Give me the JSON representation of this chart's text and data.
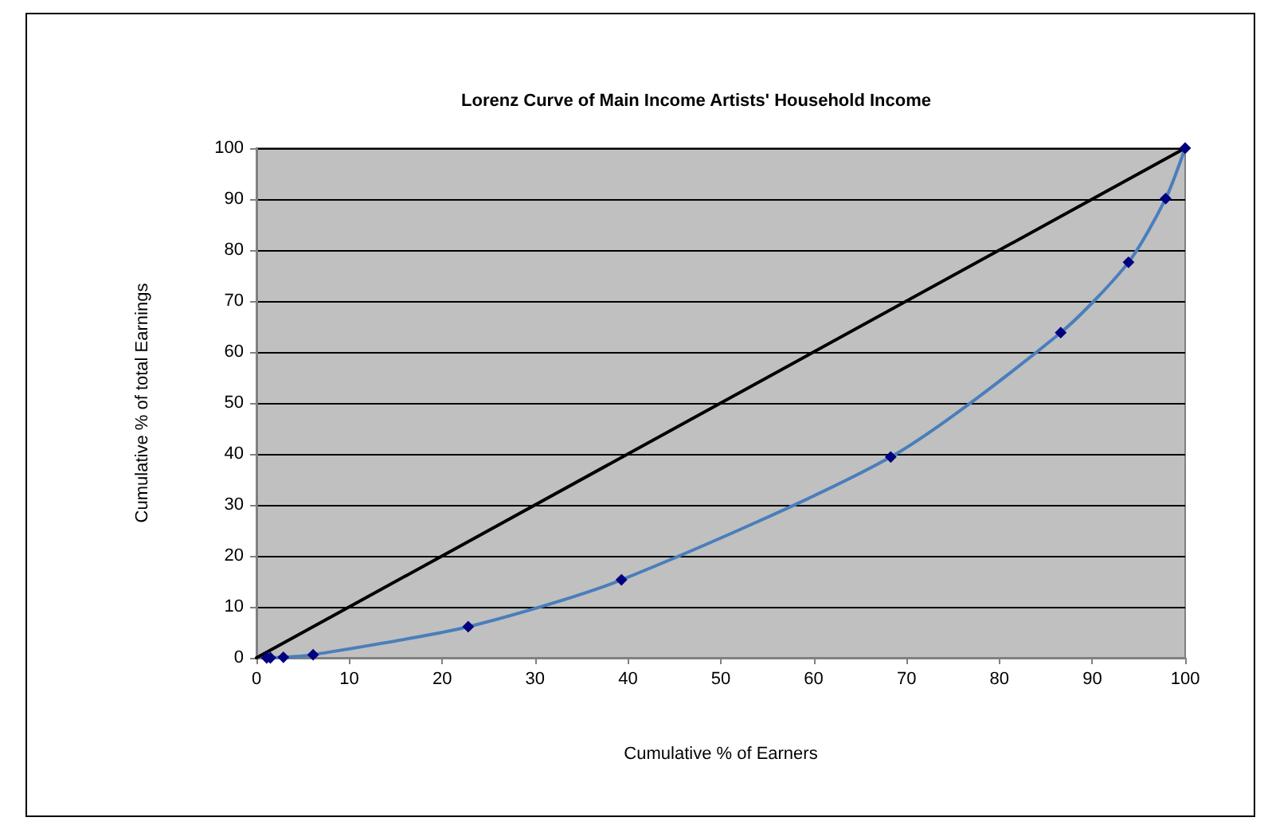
{
  "chart_data": {
    "type": "line",
    "title": "Lorenz Curve of Main Income Artists' Household Income",
    "xlabel": "Cumulative % of Earners",
    "ylabel": "Cumulative % of total Earnings",
    "series": [
      {
        "color": "#000000",
        "marker": "none",
        "x": [
          0,
          100
        ],
        "values": [
          0,
          100
        ]
      },
      {
        "color": "#4a7ebb",
        "colors": [
          "#000080",
          "#000080",
          "#000080",
          "#000080",
          "#000080",
          "#000080",
          "#000080",
          "#000080",
          "#000080",
          "#000080",
          "#000080"
        ],
        "x": [
          1.1,
          1.5,
          2.9,
          6.1,
          22.8,
          39.3,
          68.3,
          86.6,
          93.9,
          97.9,
          100
        ],
        "values": [
          0,
          0,
          0.1,
          0.6,
          6.1,
          15.3,
          39.4,
          63.8,
          77.6,
          90.1,
          100
        ]
      }
    ],
    "marker": "diamond",
    "line_style": "solid",
    "grid": "y",
    "xlim": [
      0,
      100
    ],
    "xticks": [
      0,
      10,
      20,
      30,
      40,
      50,
      60,
      70,
      80,
      90,
      100
    ],
    "ylim": [
      0,
      100
    ],
    "yticks": [
      0,
      10,
      20,
      30,
      40,
      50,
      60,
      70,
      80,
      90,
      100
    ]
  }
}
